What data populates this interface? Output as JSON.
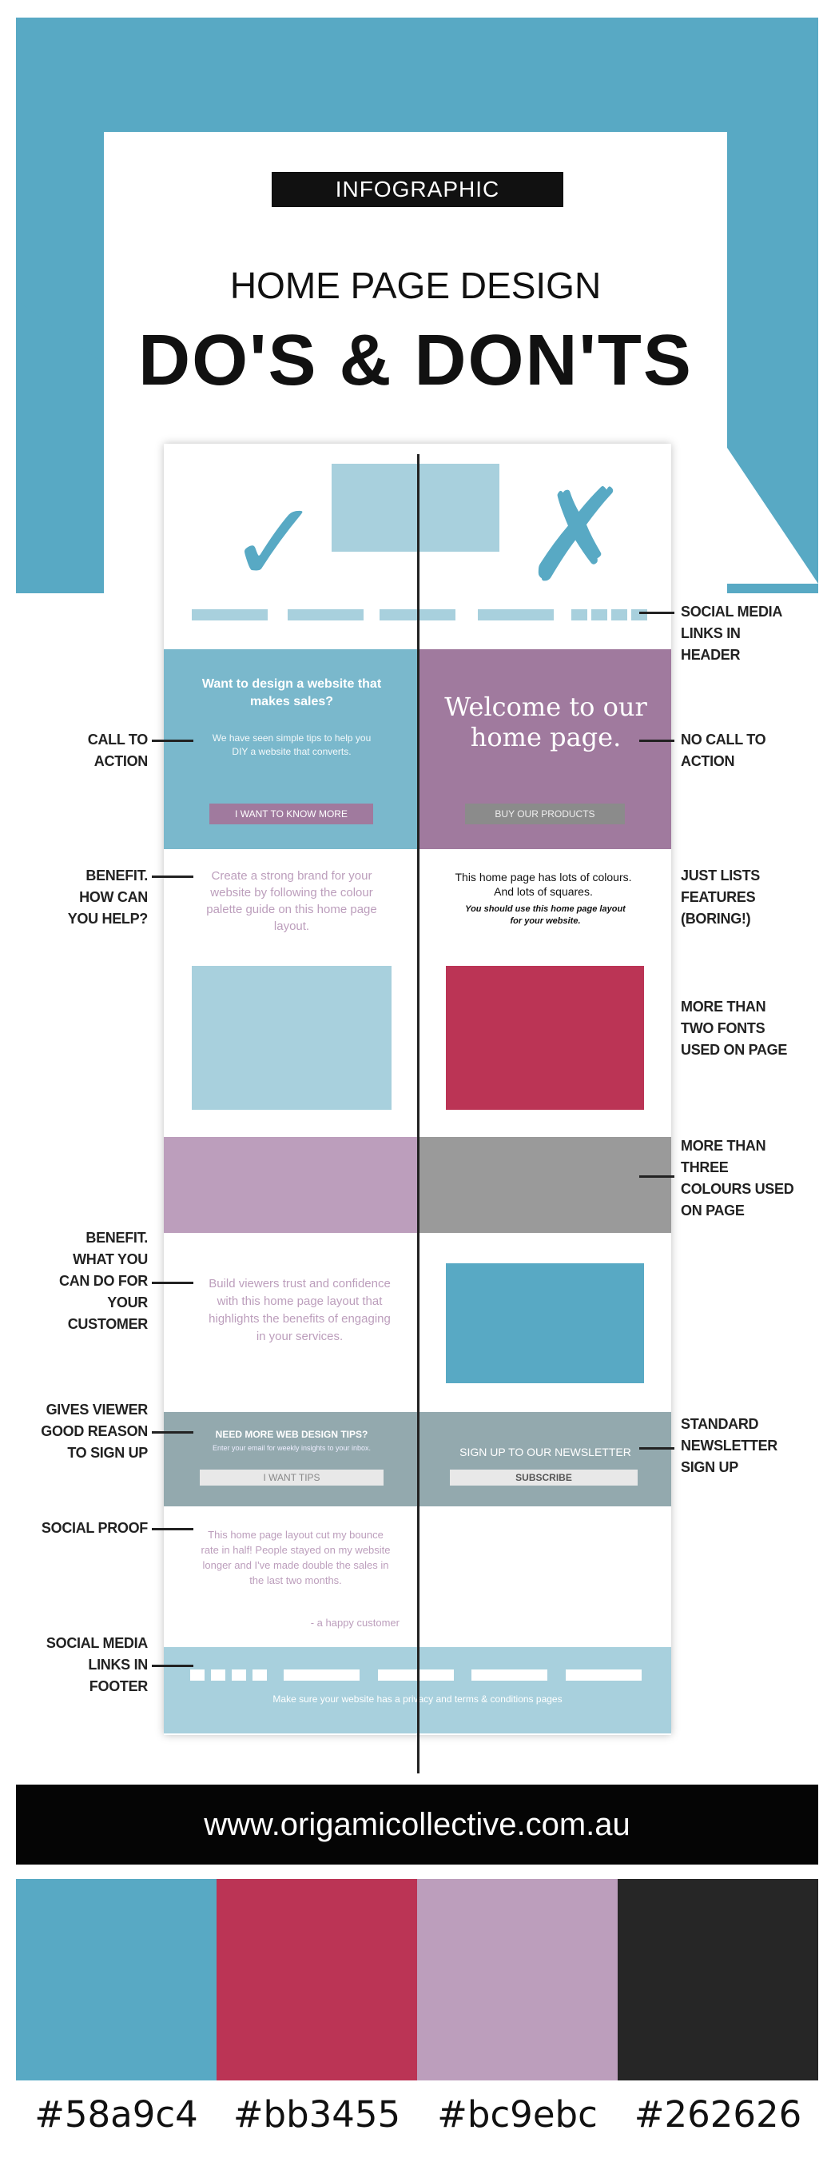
{
  "header": {
    "tag": "INFOGRAPHIC",
    "title_line1": "HOME PAGE DESIGN",
    "title_line2": "DO'S & DON'TS"
  },
  "icons": {
    "do": "check-icon",
    "dont": "cross-icon"
  },
  "mockup": {
    "cta_left_heading": "Want to design a website that makes sales?",
    "cta_left_sub": "We have seen simple tips to help you DIY a website that converts.",
    "cta_left_button": "I WANT TO KNOW MORE",
    "cta_right_heading": "Welcome to our home page.",
    "cta_right_button": "BUY OUR PRODUCTS",
    "benefit_left": "Create a strong brand for your website by following the colour palette guide on this home page layout.",
    "features_right": "This home page has lots of colours. And lots of squares.",
    "features_right_bold": "You should use this home page layout for your website.",
    "benefit2_left": "Build viewers trust and confidence with this home page layout that highlights the benefits of engaging in your services.",
    "nl_left_heading": "NEED MORE WEB DESIGN TIPS?",
    "nl_left_sub": "Enter your email for weekly insights to your inbox.",
    "nl_left_button": "I WANT TIPS",
    "nl_right_heading": "SIGN UP TO OUR NEWSLETTER",
    "nl_right_button": "SUBSCRIBE",
    "testimonial": "This home page layout cut my bounce rate in half! People stayed on my website longer and I've made double the sales in the last two months.",
    "testimonial_author": "- a happy customer",
    "footer_text": "Make sure your website has a privacy and terms & conditions pages"
  },
  "annotations": {
    "social_header": "SOCIAL MEDIA LINKS IN HEADER",
    "call_to_action": "CALL TO ACTION",
    "no_call_to_action": "NO CALL TO ACTION",
    "benefit_help": "BENEFIT. HOW CAN YOU HELP?",
    "lists_features": "JUST LISTS FEATURES (BORING!)",
    "two_fonts": "MORE THAN TWO FONTS USED ON PAGE",
    "three_colours": "MORE THAN THREE COLOURS USED ON PAGE",
    "benefit_customer": "BENEFIT. WHAT YOU CAN DO FOR YOUR CUSTOMER",
    "good_reason": "GIVES VIEWER GOOD REASON TO SIGN UP",
    "standard_newsletter": "STANDARD NEWSLETTER SIGN UP",
    "social_proof": "SOCIAL PROOF",
    "social_footer": "SOCIAL MEDIA LINKS IN FOOTER"
  },
  "url": "www.origamicollective.com.au",
  "palette": [
    {
      "hex": "#58a9c4",
      "label": "#58a9c4"
    },
    {
      "hex": "#bb3455",
      "label": "#bb3455"
    },
    {
      "hex": "#bc9ebc",
      "label": "#bc9ebc"
    },
    {
      "hex": "#262626",
      "label": "#262626"
    }
  ]
}
